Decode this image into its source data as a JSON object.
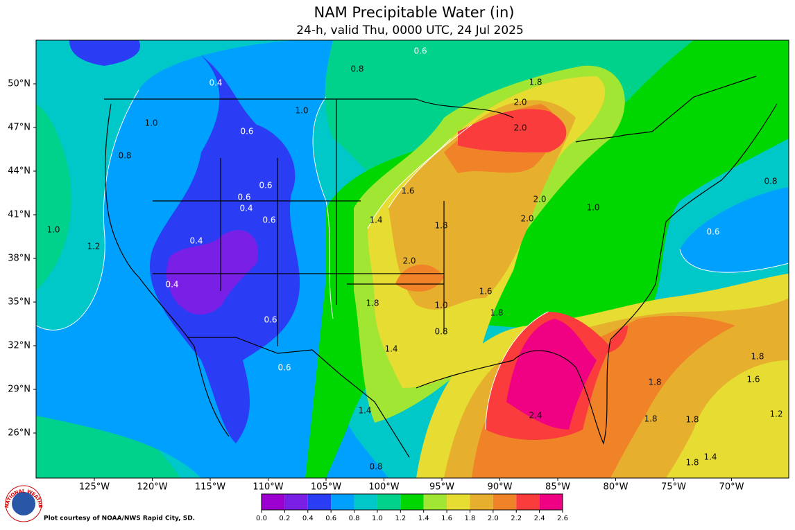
{
  "title": "NAM Precipitable Water (in)",
  "subtitle": "24-h, valid Thu, 0000 UTC, 24 Jul 2025",
  "lat_labels": [
    {
      "value": 50,
      "label": "50°N"
    },
    {
      "value": 47,
      "label": "47°N"
    },
    {
      "value": 44,
      "label": "44°N"
    },
    {
      "value": 41,
      "label": "41°N"
    },
    {
      "value": 38,
      "label": "38°N"
    },
    {
      "value": 35,
      "label": "35°N"
    },
    {
      "value": 32,
      "label": "32°N"
    },
    {
      "value": 29,
      "label": "29°N"
    },
    {
      "value": 26,
      "label": "26°N"
    }
  ],
  "lon_labels": [
    {
      "value": -125,
      "label": "125°W"
    },
    {
      "value": -120,
      "label": "120°W"
    },
    {
      "value": -115,
      "label": "115°W"
    },
    {
      "value": -110,
      "label": "110°W"
    },
    {
      "value": -105,
      "label": "105°W"
    },
    {
      "value": -100,
      "label": "100°W"
    },
    {
      "value": -95,
      "label": "95°W"
    },
    {
      "value": -90,
      "label": "90°W"
    },
    {
      "value": -85,
      "label": "85°W"
    },
    {
      "value": -80,
      "label": "80°W"
    },
    {
      "value": -75,
      "label": "75°W"
    },
    {
      "value": -70,
      "label": "70°W"
    }
  ],
  "colorbar": {
    "ticks": [
      {
        "value": 0,
        "label": "0.0"
      },
      {
        "value": 0.2,
        "label": "0.2"
      },
      {
        "value": 0.4,
        "label": "0.4"
      },
      {
        "value": 0.6,
        "label": "0.6"
      },
      {
        "value": 0.8,
        "label": "0.8"
      },
      {
        "value": 1.0,
        "label": "1.0"
      },
      {
        "value": 1.2,
        "label": "1.2"
      },
      {
        "value": 1.4,
        "label": "1.4"
      },
      {
        "value": 1.6,
        "label": "1.6"
      },
      {
        "value": 1.8,
        "label": "1.8"
      },
      {
        "value": 2.0,
        "label": "2.0"
      },
      {
        "value": 2.2,
        "label": "2.2"
      },
      {
        "value": 2.4,
        "label": "2.4"
      },
      {
        "value": 2.6,
        "label": "2.6"
      }
    ],
    "colors": [
      "#9b00d0",
      "#7a20e6",
      "#2b3cf5",
      "#00a0ff",
      "#00c8c8",
      "#00d28c",
      "#00d700",
      "#a0e632",
      "#e6dc32",
      "#e6af2d",
      "#f08228",
      "#fa3c3c",
      "#f00082"
    ]
  },
  "contour_labels": [
    "0.6",
    "0.8",
    "0.4",
    "1.0",
    "1.8",
    "2.0",
    "0.6",
    "1.0",
    "2.0",
    "0.8",
    "0.6",
    "1.0",
    "1.6",
    "0.6",
    "0.4",
    "0.6",
    "1.4",
    "1.8",
    "1.0",
    "2.0",
    "2.0",
    "1.2",
    "0.4",
    "1.8",
    "2.0",
    "0.4",
    "0.6",
    "1.8",
    "1.0",
    "0.8",
    "1.6",
    "1.8",
    "0.8",
    "0.6",
    "1.4",
    "1.8",
    "1.8",
    "1.8",
    "1.6",
    "1.4",
    "2.4",
    "1.8",
    "1.2",
    "0.6",
    "0.8",
    "1.4"
  ],
  "credit": "Plot courtesy of NOAA/NWS Rapid City, SD.",
  "logo_text": "NATIONAL WEATHER SERVICE"
}
